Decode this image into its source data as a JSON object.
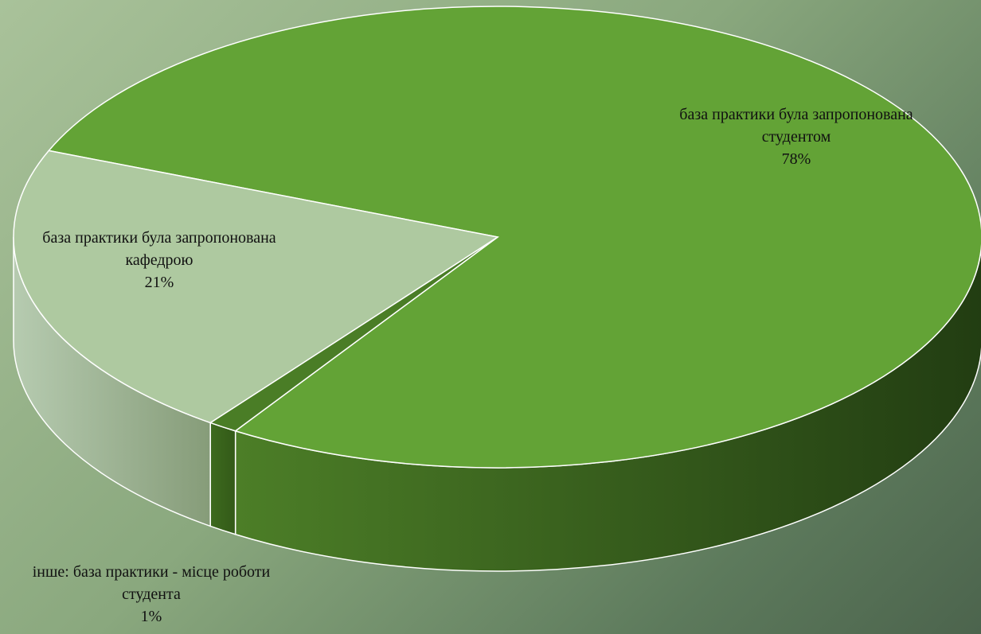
{
  "chart_data": {
    "type": "pie3d",
    "categories": [
      "база практики була запропонована студентом",
      "інше: база практики - місце роботи студента",
      "база практики була запропонована кафедрою"
    ],
    "values": [
      78,
      1,
      21
    ],
    "value_labels": [
      "78%",
      "1%",
      "21%"
    ],
    "colors": [
      "#63a336",
      "#4a7d26",
      "#aec9a0"
    ]
  }
}
